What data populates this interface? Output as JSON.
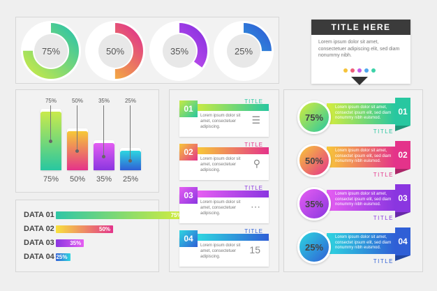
{
  "donuts": [
    {
      "label": "75%",
      "value": 0.75,
      "color_a": "#c6e94a",
      "color_b": "#2ec4a6"
    },
    {
      "label": "50%",
      "value": 0.5,
      "color_a": "#f7c531",
      "color_b": "#e0348b"
    },
    {
      "label": "35%",
      "value": 0.35,
      "color_a": "#e25ff3",
      "color_b": "#8a32e0"
    },
    {
      "label": "25%",
      "value": 0.25,
      "color_a": "#2fd0df",
      "color_b": "#2f5fd6"
    }
  ],
  "title_box": {
    "title": "TITLE HERE",
    "text": "Lorem ipsum dolor sit amet, consectetuer adipiscing elit, sed diam nonummy nibh.",
    "dot_colors": [
      "#f5c33b",
      "#ef5e7a",
      "#c55ce8",
      "#4fa7ee",
      "#3dd2a8"
    ]
  },
  "vbars": [
    {
      "top": "75%",
      "bottom": "75%",
      "value": 0.75,
      "color_a": "#c9ea4c",
      "color_b": "#28c7a0"
    },
    {
      "top": "50%",
      "bottom": "50%",
      "value": 0.5,
      "color_a": "#f6c838",
      "color_b": "#e4338a"
    },
    {
      "top": "35%",
      "bottom": "35%",
      "value": 0.35,
      "color_a": "#e35ef2",
      "color_b": "#8a36e0"
    },
    {
      "top": "25%",
      "bottom": "25%",
      "value": 0.25,
      "color_a": "#2ed6e0",
      "color_b": "#2f5fd6"
    }
  ],
  "hbars": [
    {
      "label": "DATA 01",
      "value_label": "75%",
      "value": 0.75,
      "color_a": "#2fc6a6",
      "color_b": "#d6ed3d"
    },
    {
      "label": "DATA 02",
      "value_label": "50%",
      "value": 0.5,
      "color_a": "#f8e13e",
      "color_b": "#e3348b"
    },
    {
      "label": "DATA 03",
      "value_label": "35%",
      "value": 0.35,
      "color_a": "#8a36e0",
      "color_b": "#e65ef2"
    },
    {
      "label": "DATA 04",
      "value_label": "25%",
      "value": 0.25,
      "color_a": "#2f5fd6",
      "color_b": "#2ed6e0"
    }
  ],
  "cards": [
    {
      "num": "01",
      "title": "TITLE",
      "text": "Lorem ipsum dolor sit amet, consectetuer adipiscing.",
      "icon": "document-icon",
      "glyph": "☰",
      "color_a": "#c6ea45",
      "color_b": "#28c7a0"
    },
    {
      "num": "02",
      "title": "TITLE",
      "text": "Lorem ipsum dolor sit amet, consectetuer adipiscing.",
      "icon": "magnifier-icon",
      "glyph": "⚲",
      "color_a": "#f7c838",
      "color_b": "#e4338a"
    },
    {
      "num": "03",
      "title": "TITLE",
      "text": "Lorem ipsum dolor sit amet, consectetuer adipiscing.",
      "icon": "chat-icon",
      "glyph": "⋯",
      "color_a": "#e65ef2",
      "color_b": "#8a36e0"
    },
    {
      "num": "04",
      "title": "TITLE",
      "text": "Lorem ipsum dolor sit amet, consectetuer adipiscing.",
      "icon": "calendar-icon",
      "glyph": "15",
      "color_a": "#2ed6e0",
      "color_b": "#2f5fd6"
    }
  ],
  "rows": [
    {
      "pct": "75%",
      "num": "01",
      "title": "TITLE",
      "text": "Lorem ipsum dolor sit amet, consectet ipsum elit, sed diam nonummy nibh euismod.",
      "color_a": "#d6ed3d",
      "color_b": "#28c7a0"
    },
    {
      "pct": "50%",
      "num": "02",
      "title": "TITLE",
      "text": "Lorem ipsum dolor sit amet, consectet ipsum elit, sed diam nonummy nibh euismod.",
      "color_a": "#f8c838",
      "color_b": "#e4338a"
    },
    {
      "pct": "35%",
      "num": "03",
      "title": "TITLE",
      "text": "Lorem ipsum dolor sit amet, consectet ipsum elit, sed diam nonummy nibh euismod.",
      "color_a": "#e65ef2",
      "color_b": "#8a36e0"
    },
    {
      "pct": "25%",
      "num": "04",
      "title": "TITLE",
      "text": "Lorem ipsum dolor sit amet, consectet ipsum elit, sed diam nonummy nibh euismod.",
      "color_a": "#2ed6e0",
      "color_b": "#2f5fd6"
    }
  ]
}
